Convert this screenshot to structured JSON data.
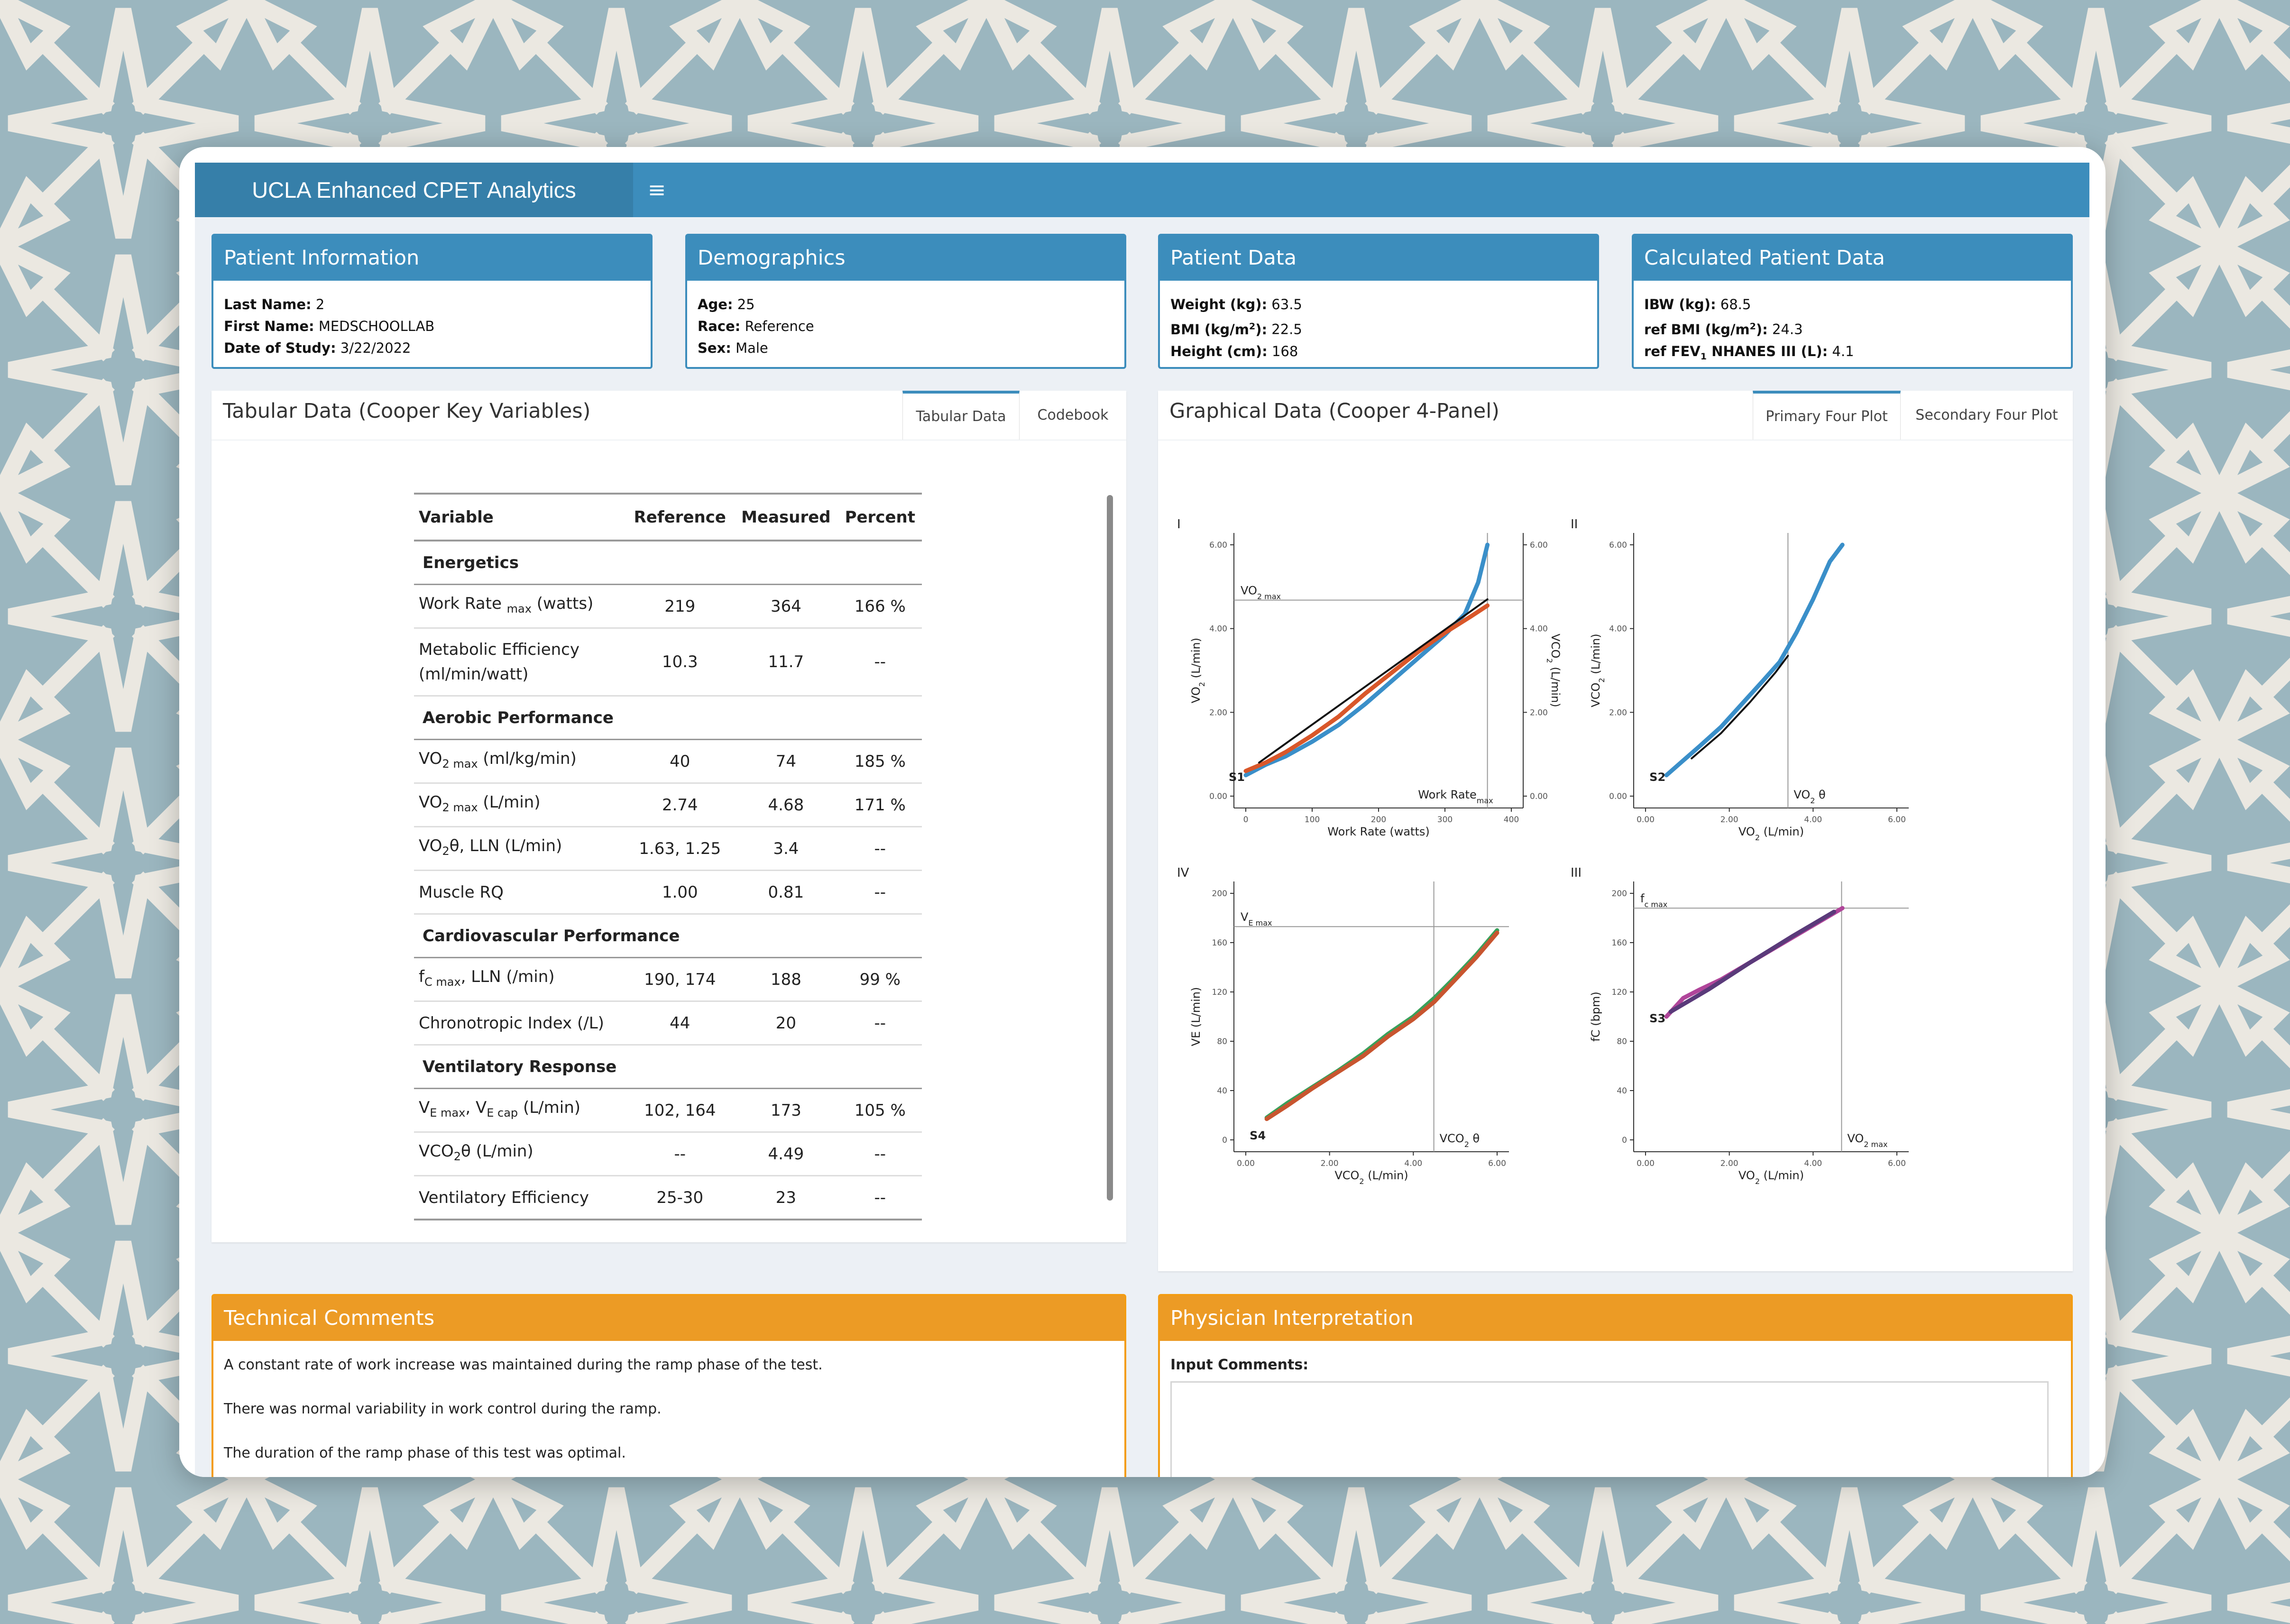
{
  "app": {
    "title": "UCLA Enhanced CPET Analytics",
    "menu_icon": "hamburger-icon",
    "menu_glyph": "≡"
  },
  "patient_information": {
    "title": "Patient Information",
    "last_name_label": "Last Name:",
    "last_name": "2",
    "first_name_label": "First Name:",
    "first_name": "MEDSCHOOLLAB",
    "date_label": "Date of Study:",
    "date": "3/22/2022"
  },
  "demographics": {
    "title": "Demographics",
    "age_label": "Age:",
    "age": "25",
    "race_label": "Race:",
    "race": "Reference",
    "sex_label": "Sex:",
    "sex": "Male"
  },
  "patient_data": {
    "title": "Patient Data",
    "weight_label": "Weight (kg):",
    "weight": "63.5",
    "bmi_label_pre": "BMI (kg/m",
    "bmi_label_sup": "2",
    "bmi_label_post": "):",
    "bmi": "22.5",
    "height_label": "Height (cm):",
    "height": "168"
  },
  "calculated_patient_data": {
    "title": "Calculated Patient Data",
    "ibw_label": "IBW (kg):",
    "ibw": "68.5",
    "ref_bmi_label_pre": "ref BMI (kg/m",
    "ref_bmi_label_sup": "2",
    "ref_bmi_label_post": "):",
    "ref_bmi": "24.3",
    "fev_label_pre": "ref FEV",
    "fev_label_sub": "1",
    "fev_label_post": " NHANES III (L):",
    "fev": "4.1"
  },
  "tabular": {
    "title": "Tabular Data (Cooper Key Variables)",
    "tabs": [
      "Tabular Data",
      "Codebook"
    ],
    "headers": [
      "Variable",
      "Reference",
      "Measured",
      "Percent"
    ],
    "sections": {
      "energetics": "Energetics",
      "aerobic": "Aerobic Performance",
      "cardio": "Cardiovascular Performance",
      "ventilatory": "Ventilatory Response"
    },
    "rows": [
      {
        "var_a": "Work Rate ",
        "var_sub": "max",
        "var_b": " (watts)",
        "ref": "219",
        "meas": "364",
        "pct": "166 %"
      },
      {
        "var_a": "Metabolic Efficiency",
        "var_b": "(ml/min/watt)",
        "ref": "10.3",
        "meas": "11.7",
        "pct": "--"
      },
      {
        "var_a": "VO",
        "var_sub": "2 max",
        "var_b": " (ml/kg/min)",
        "ref": "40",
        "meas": "74",
        "pct": "185 %"
      },
      {
        "var_a": "VO",
        "var_sub": "2 max",
        "var_b": " (L/min)",
        "ref": "2.74",
        "meas": "4.68",
        "pct": "171 %"
      },
      {
        "var_a": "VO",
        "var_sub": "2",
        "var_b": "θ, LLN (L/min)",
        "ref": "1.63, 1.25",
        "meas": "3.4",
        "pct": "--"
      },
      {
        "var_a": "Muscle RQ",
        "ref": "1.00",
        "meas": "0.81",
        "pct": "--"
      },
      {
        "var_a": "f",
        "var_sub": "C max",
        "var_b": ", LLN (/min)",
        "ref": "190, 174",
        "meas": "188",
        "pct": "99 %"
      },
      {
        "var_a": "Chronotropic Index (/L)",
        "ref": "44",
        "meas": "20",
        "pct": "--"
      },
      {
        "var_a": "V",
        "var_sub": "E max",
        "var_b": ", V",
        "var_sub2": "E cap",
        "var_c": " (L/min)",
        "ref": "102, 164",
        "meas": "173",
        "pct": "105 %"
      },
      {
        "var_a": "VCO",
        "var_sub": "2",
        "var_b": "θ (L/min)",
        "ref": "--",
        "meas": "4.49",
        "pct": "--"
      },
      {
        "var_a": "Ventilatory Efficiency",
        "ref": "25-30",
        "meas": "23",
        "pct": "--"
      }
    ]
  },
  "graphical": {
    "title": "Graphical Data (Cooper 4-Panel)",
    "tabs": [
      "Primary Four Plot",
      "Secondary Four Plot"
    ]
  },
  "chart_data": [
    {
      "type": "line",
      "panel": "I",
      "x_ticks": [
        "0",
        "100",
        "200",
        "300",
        "400"
      ],
      "y_ticks": [
        "0.00",
        "2.00",
        "4.00",
        "6.00"
      ],
      "y2_ticks": [
        "0.00",
        "2.00",
        "4.00",
        "6.00"
      ],
      "xlabel": "Work Rate (watts)",
      "ylabel_a": "VO",
      "ylabel_sub": "2",
      "ylabel_b": " (L/min)",
      "y2label_a": "VCO",
      "y2label_sub": "2",
      "y2label_b": " (L/min)",
      "xlim": [
        0,
        400
      ],
      "ylim": [
        0,
        6
      ],
      "ref_h_label_a": "VO",
      "ref_h_label_sub": "2 max",
      "ref_h_y": 4.68,
      "ref_v_label_a": "Work Rate",
      "ref_v_label_sub": "max",
      "ref_v_x": 364,
      "s_label": "S1",
      "series": [
        {
          "color": "#3a8fc9",
          "x": [
            0,
            30,
            60,
            100,
            140,
            180,
            220,
            260,
            300,
            330,
            350,
            364
          ],
          "y": [
            0.5,
            0.75,
            0.95,
            1.3,
            1.7,
            2.2,
            2.75,
            3.3,
            3.85,
            4.35,
            5.1,
            6.0
          ]
        },
        {
          "color": "#d9572a",
          "x": [
            0,
            30,
            60,
            100,
            140,
            180,
            220,
            260,
            300,
            340,
            364
          ],
          "y": [
            0.6,
            0.8,
            1.05,
            1.45,
            1.9,
            2.45,
            2.95,
            3.45,
            3.9,
            4.3,
            4.55
          ]
        },
        {
          "color": "#111111",
          "x": [
            20,
            364
          ],
          "y": [
            0.8,
            4.7
          ]
        }
      ]
    },
    {
      "type": "line",
      "panel": "II",
      "x_ticks": [
        "0.00",
        "2.00",
        "4.00",
        "6.00"
      ],
      "y_ticks": [
        "0.00",
        "2.00",
        "4.00",
        "6.00"
      ],
      "xlabel_a": "VO",
      "xlabel_sub": "2",
      "xlabel_b": " (L/min)",
      "ylabel_a": "VCO",
      "ylabel_sub": "2",
      "ylabel_b": " (L/min)",
      "xlim": [
        0,
        6
      ],
      "ylim": [
        0,
        6
      ],
      "ref_v_label_a": "VO",
      "ref_v_label_sub": "2",
      "ref_v_label_b": " θ",
      "ref_v_x": 3.4,
      "s_label": "S2",
      "series": [
        {
          "color": "#3a8fc9",
          "x": [
            0.5,
            0.9,
            1.3,
            1.8,
            2.3,
            2.8,
            3.2,
            3.6,
            4.0,
            4.4,
            4.7
          ],
          "y": [
            0.5,
            0.85,
            1.2,
            1.65,
            2.2,
            2.75,
            3.2,
            3.9,
            4.7,
            5.6,
            6.0
          ]
        },
        {
          "color": "#111111",
          "x": [
            1.1,
            1.8,
            2.5,
            3.1,
            3.4
          ],
          "y": [
            0.9,
            1.5,
            2.25,
            2.95,
            3.35
          ]
        }
      ]
    },
    {
      "type": "line",
      "panel": "III",
      "x_ticks": [
        "0.00",
        "2.00",
        "4.00",
        "6.00"
      ],
      "y_ticks": [
        "0",
        "40",
        "80",
        "120",
        "160",
        "200"
      ],
      "xlabel_a": "VO",
      "xlabel_sub": "2",
      "xlabel_b": " (L/min)",
      "ylabel": "fC (bpm)",
      "xlim": [
        0,
        6
      ],
      "ylim": [
        0,
        200
      ],
      "ref_h_label_a": "f",
      "ref_h_label_sub": "c max",
      "ref_h_y": 188,
      "ref_v_label_a": "VO",
      "ref_v_label_sub": "2 max",
      "ref_v_x": 4.68,
      "s_label": "S3",
      "series": [
        {
          "color": "#b0459a",
          "x": [
            0.5,
            0.9,
            1.3,
            1.8,
            2.3,
            2.8,
            3.3,
            3.8,
            4.3,
            4.7
          ],
          "y": [
            100,
            115,
            122,
            130,
            140,
            150,
            160,
            170,
            180,
            188
          ]
        },
        {
          "color": "#5a3a7a",
          "x": [
            0.6,
            1.5,
            2.5,
            3.5,
            4.5
          ],
          "y": [
            104,
            122,
            144,
            165,
            185
          ]
        }
      ]
    },
    {
      "type": "line",
      "panel": "IV",
      "x_ticks": [
        "0.00",
        "2.00",
        "4.00",
        "6.00"
      ],
      "y_ticks": [
        "0",
        "40",
        "80",
        "120",
        "160",
        "200"
      ],
      "xlabel_a": "VCO",
      "xlabel_sub": "2",
      "xlabel_b": " (L/min)",
      "ylabel": "VE (L/min)",
      "xlim": [
        0,
        6
      ],
      "ylim": [
        0,
        200
      ],
      "ref_h_label_a": "V",
      "ref_h_label_sub": "E max",
      "ref_h_y": 173,
      "ref_v_label_a": "VCO",
      "ref_v_label_sub": "2",
      "ref_v_label_b": " θ",
      "ref_v_x": 4.49,
      "s_label": "S4",
      "series": [
        {
          "color": "#3aa05a",
          "x": [
            0.5,
            1.0,
            1.6,
            2.2,
            2.8,
            3.4,
            4.0,
            4.5,
            5.0,
            5.5,
            6.0
          ],
          "y": [
            18,
            30,
            43,
            56,
            70,
            86,
            100,
            115,
            132,
            150,
            170
          ]
        },
        {
          "color": "#c8552f",
          "x": [
            0.5,
            1.0,
            1.6,
            2.2,
            2.8,
            3.4,
            4.0,
            4.5,
            5.0,
            5.5,
            6.0
          ],
          "y": [
            17,
            28,
            42,
            55,
            68,
            84,
            98,
            112,
            130,
            148,
            168
          ]
        }
      ]
    }
  ],
  "technical_comments": {
    "title": "Technical Comments",
    "lines": [
      "A constant rate of work increase was maintained during the ramp phase of the test.",
      "There was normal variability in work control during the ramp.",
      "The duration of the ramp phase of this test was optimal."
    ]
  },
  "physician_interpretation": {
    "title": "Physician Interpretation",
    "input_label": "Input Comments:",
    "input_value": ""
  }
}
